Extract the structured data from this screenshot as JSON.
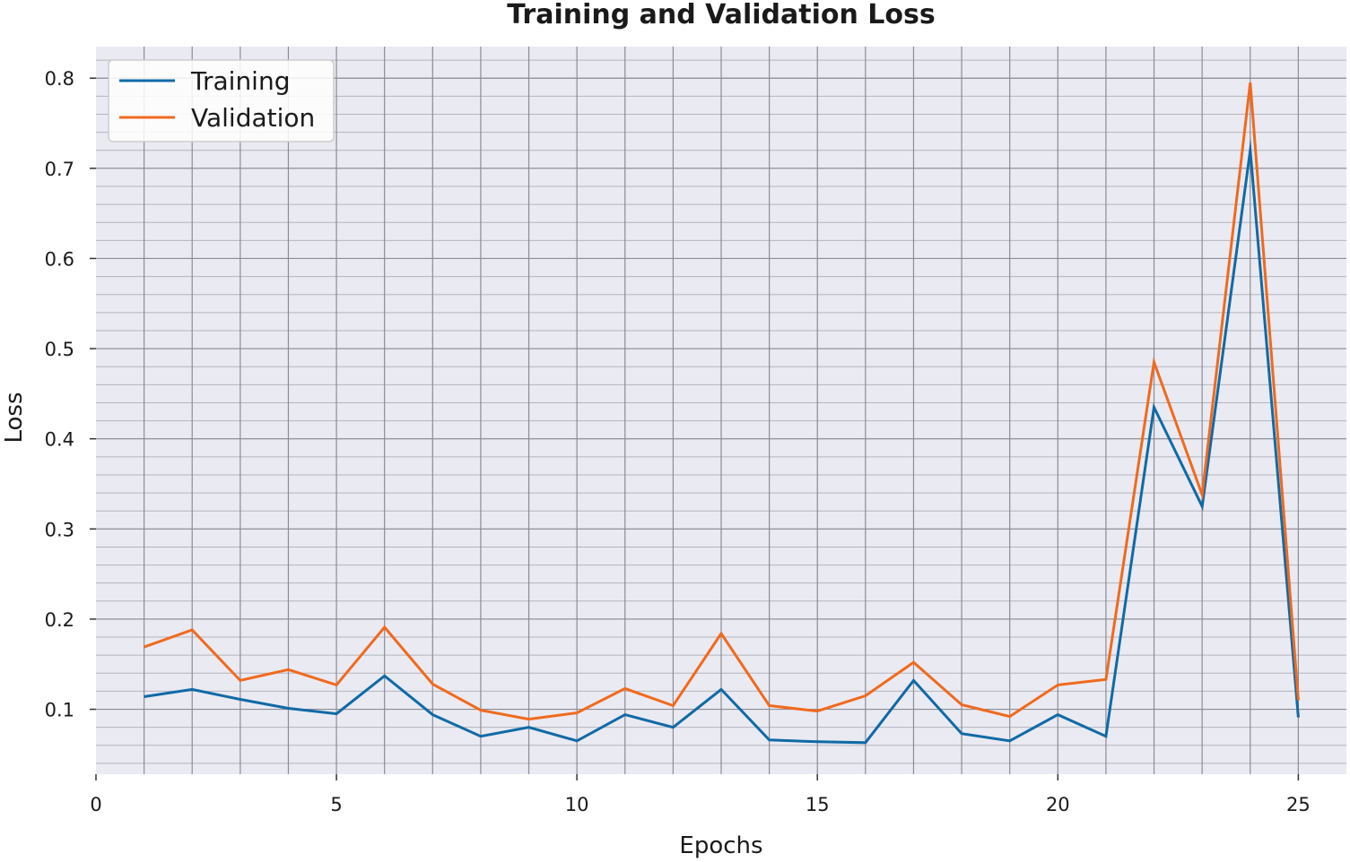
{
  "chart_data": {
    "type": "line",
    "title": "Training and Validation Loss",
    "xlabel": "Epochs",
    "ylabel": "Loss",
    "xlim": [
      0,
      26
    ],
    "ylim": [
      0.028,
      0.835
    ],
    "xticks": [
      0,
      5,
      10,
      15,
      20,
      25
    ],
    "yticks": [
      0.1,
      0.2,
      0.3,
      0.4,
      0.5,
      0.6,
      0.7,
      0.8
    ],
    "grid": true,
    "legend_position": "top-left",
    "x": [
      1,
      2,
      3,
      4,
      5,
      6,
      7,
      8,
      9,
      10,
      11,
      12,
      13,
      14,
      15,
      16,
      17,
      18,
      19,
      20,
      21,
      22,
      23,
      24,
      25
    ],
    "series": [
      {
        "name": "Training",
        "color": "#0f6aa6",
        "values": [
          0.114,
          0.122,
          0.111,
          0.101,
          0.095,
          0.137,
          0.094,
          0.07,
          0.08,
          0.065,
          0.094,
          0.08,
          0.122,
          0.066,
          0.064,
          0.063,
          0.132,
          0.073,
          0.065,
          0.094,
          0.07,
          0.435,
          0.325,
          0.72,
          0.091
        ]
      },
      {
        "name": "Validation",
        "color": "#f06a1d",
        "values": [
          0.169,
          0.188,
          0.132,
          0.144,
          0.127,
          0.191,
          0.128,
          0.099,
          0.089,
          0.096,
          0.123,
          0.104,
          0.184,
          0.104,
          0.098,
          0.115,
          0.152,
          0.105,
          0.092,
          0.127,
          0.133,
          0.485,
          0.338,
          0.795,
          0.11
        ]
      }
    ],
    "colors": {
      "plot_background": "#eaeaf2",
      "grid_major": "#8c8c94",
      "grid_minor": "#b4b4bc"
    }
  }
}
